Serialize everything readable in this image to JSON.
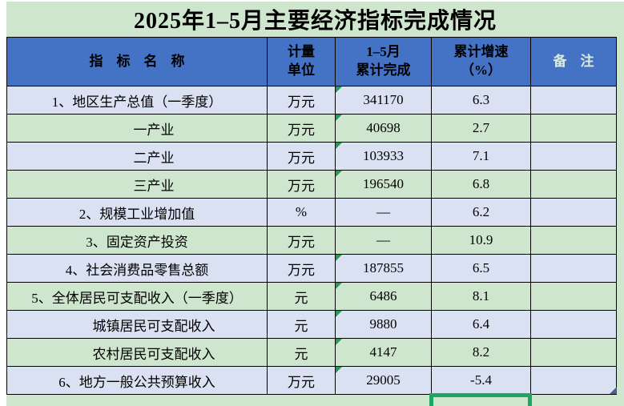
{
  "title": "2025年1–5月主要经济指标完成情况",
  "colors": {
    "sheet_background": "#cfe6ce",
    "header_fill": "#4472c4",
    "row_blue": "#d9e1f2",
    "row_green": "#cee6cd",
    "remark_header_text": "#dcecdc",
    "error_marker_green": "#259b54",
    "active_cell_border_green": "#1fa463",
    "corner_triangle_blue": "#44608f"
  },
  "table": {
    "header": {
      "indicator": "指　标　名　称",
      "unit_lines": [
        "计量",
        "单位"
      ],
      "completed_lines": [
        "1–5月",
        "累计完成"
      ],
      "growth_lines": [
        "累计增速",
        "（%）"
      ],
      "remark": "备　注"
    },
    "rows": [
      {
        "name": "1、地区生产总值（一季度）",
        "unit": "万元",
        "value": "341170",
        "growth": "6.3",
        "remark": "",
        "indent": false,
        "marker": true
      },
      {
        "name": "一产业",
        "unit": "万元",
        "value": "40698",
        "growth": "2.7",
        "remark": "",
        "indent": true,
        "marker": true
      },
      {
        "name": "二产业",
        "unit": "万元",
        "value": "103933",
        "growth": "7.1",
        "remark": "",
        "indent": true,
        "marker": true
      },
      {
        "name": "三产业",
        "unit": "万元",
        "value": "196540",
        "growth": "6.8",
        "remark": "",
        "indent": true,
        "marker": true
      },
      {
        "name": "2、规模工业增加值",
        "unit": "%",
        "value": "—",
        "growth": "6.2",
        "remark": "",
        "indent": false,
        "marker": false
      },
      {
        "name": "3、固定资产投资",
        "unit": "万元",
        "value": "—",
        "growth": "10.9",
        "remark": "",
        "indent": false,
        "marker": false
      },
      {
        "name": "4、社会消费品零售总额",
        "unit": "万元",
        "value": "187855",
        "growth": "6.5",
        "remark": "",
        "indent": false,
        "marker": true
      },
      {
        "name": "5、全体居民可支配收入（一季度）",
        "unit": "元",
        "value": "6486",
        "growth": "8.1",
        "remark": "",
        "indent": false,
        "marker": true
      },
      {
        "name": "城镇居民可支配收入",
        "unit": "元",
        "value": "9880",
        "growth": "6.4",
        "remark": "",
        "indent": true,
        "marker": true
      },
      {
        "name": "农村居民可支配收入",
        "unit": "元",
        "value": "4147",
        "growth": "8.2",
        "remark": "",
        "indent": true,
        "marker": true
      },
      {
        "name": "6、地方一般公共预算收入",
        "unit": "万元",
        "value": "29005",
        "growth": "-5.4",
        "remark": "",
        "indent": false,
        "marker": true
      }
    ]
  }
}
